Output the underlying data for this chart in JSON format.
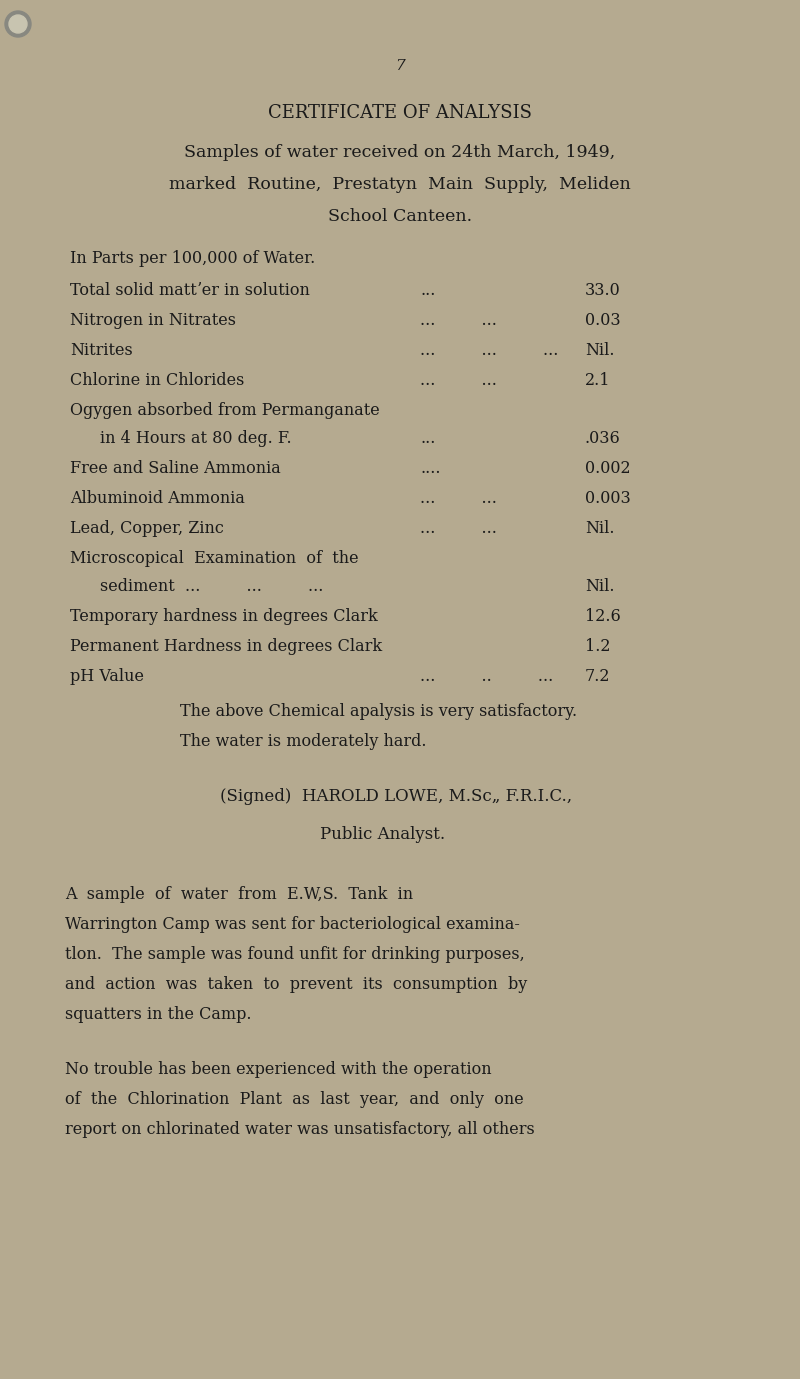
{
  "bg_color": "#b5aa90",
  "text_color": "#1a1a1a",
  "page_number": "7",
  "title": "CERTIFICATE OF ANALYSIS",
  "intro": "Samples of water received on 24th March, 1949,\nmarked  Routine,  Prestatyn  Main  Supply,  Meliden\nSchool Canteen.",
  "subheading": "In Parts per 100,000 of Water.",
  "rows": [
    [
      "Total solid mattʼer in solution",
      "...",
      "33.0"
    ],
    [
      "Nitrogen in Nitrates",
      "...         ...",
      "0.03"
    ],
    [
      "Nitrites",
      "...         ...         ...",
      "Nil."
    ],
    [
      "Chlorine in Chlorides",
      "...         ...",
      "2.1"
    ],
    [
      "Ogygen absorbed from Permanganate\n    in 4 Hours at 80 deg. F.",
      "...",
      ".036"
    ],
    [
      "Free and Saline Ammonia",
      "....",
      "0.002"
    ],
    [
      "Albuminoid Ammonia",
      "...         ...",
      "0.003"
    ],
    [
      "Lead, Copper, Zinc",
      "...         ...",
      "Nil."
    ],
    [
      "Microscopical  Examination  of  the\n    sediment  ...         ...         ...",
      "",
      "Nil."
    ],
    [
      "Temporary hardness in degrees Clark",
      "",
      "12.6"
    ],
    [
      "Permanent Hardness in degrees Clark",
      "",
      "1.2"
    ],
    [
      "pH Value",
      "...         ..         ...",
      "7.2"
    ]
  ],
  "conclusion1": "The above Chemical apalysis is very satisfactory.",
  "conclusion2": "The water is moderately hard.",
  "signed_line": "(Signed)  HAROLD LOWE, M.Sc„ F.R.I.C.,",
  "analyst": "Public Analyst.",
  "para2": "A  sample  of  water  from  E.W,S.  Tank  in\nWarrington Camp was sent for bacteriological examina-\ntlon.  The sample was found unfit for drinking purposes,\nand  action  was  taken  to  prevent  its  consumption  by\nsquatters in the Camp.",
  "para3": "No trouble has been experienced with the operation\nof  the  Chlorination  Plant  as  last  year,  and  only  one\nreport on chlorinated water was unsatisfactory, all others"
}
